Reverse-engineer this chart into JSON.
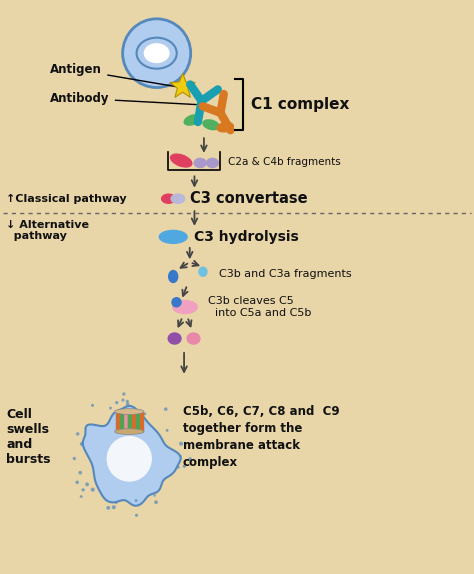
{
  "bg_color": "#e8d5a8",
  "figsize": [
    4.74,
    5.74
  ],
  "dpi": 100,
  "labels": {
    "c1_complex": "C1 complex",
    "c2a_c4b": "C2a & C4b fragments",
    "classical": "↑Classical pathway",
    "c3_convertase": "C3 convertase",
    "alternative": "↓ Alternative\n  pathway",
    "c3_hydrolysis": "C3 hydrolysis",
    "c3b_c3a": "C3b and C3a fragments",
    "c3b_cleaves": "C3b cleaves C5\n  into C5a and C5b",
    "cell_swells": "Cell\nswells\nand\nbursts",
    "mac": "C5b, C6, C7, C8 and  C9\ntogether form the\nmembrane attack\ncomplex"
  },
  "colors": {
    "cell_blue_light": "#b0ccee",
    "cell_blue_med": "#7aaddd",
    "cell_blue_dark": "#5588bb",
    "cell_white": "#e8f0f8",
    "antigen_yellow": "#f0cc10",
    "antibody_teal": "#18a0b0",
    "antibody_orange": "#d87820",
    "antibody_green": "#50b060",
    "pill_pink": "#e04060",
    "pill_lavender": "#a898cc",
    "pill_blue": "#50a8e0",
    "pill_teal": "#40b8c0",
    "pill_purple": "#9050a8",
    "pill_pink2": "#e888a8",
    "mac_orange": "#e06820",
    "mac_green": "#48a848",
    "mac_pink": "#e09898",
    "text_black": "#111111",
    "arrow_color": "#444444",
    "dotted_line": "#666666"
  }
}
